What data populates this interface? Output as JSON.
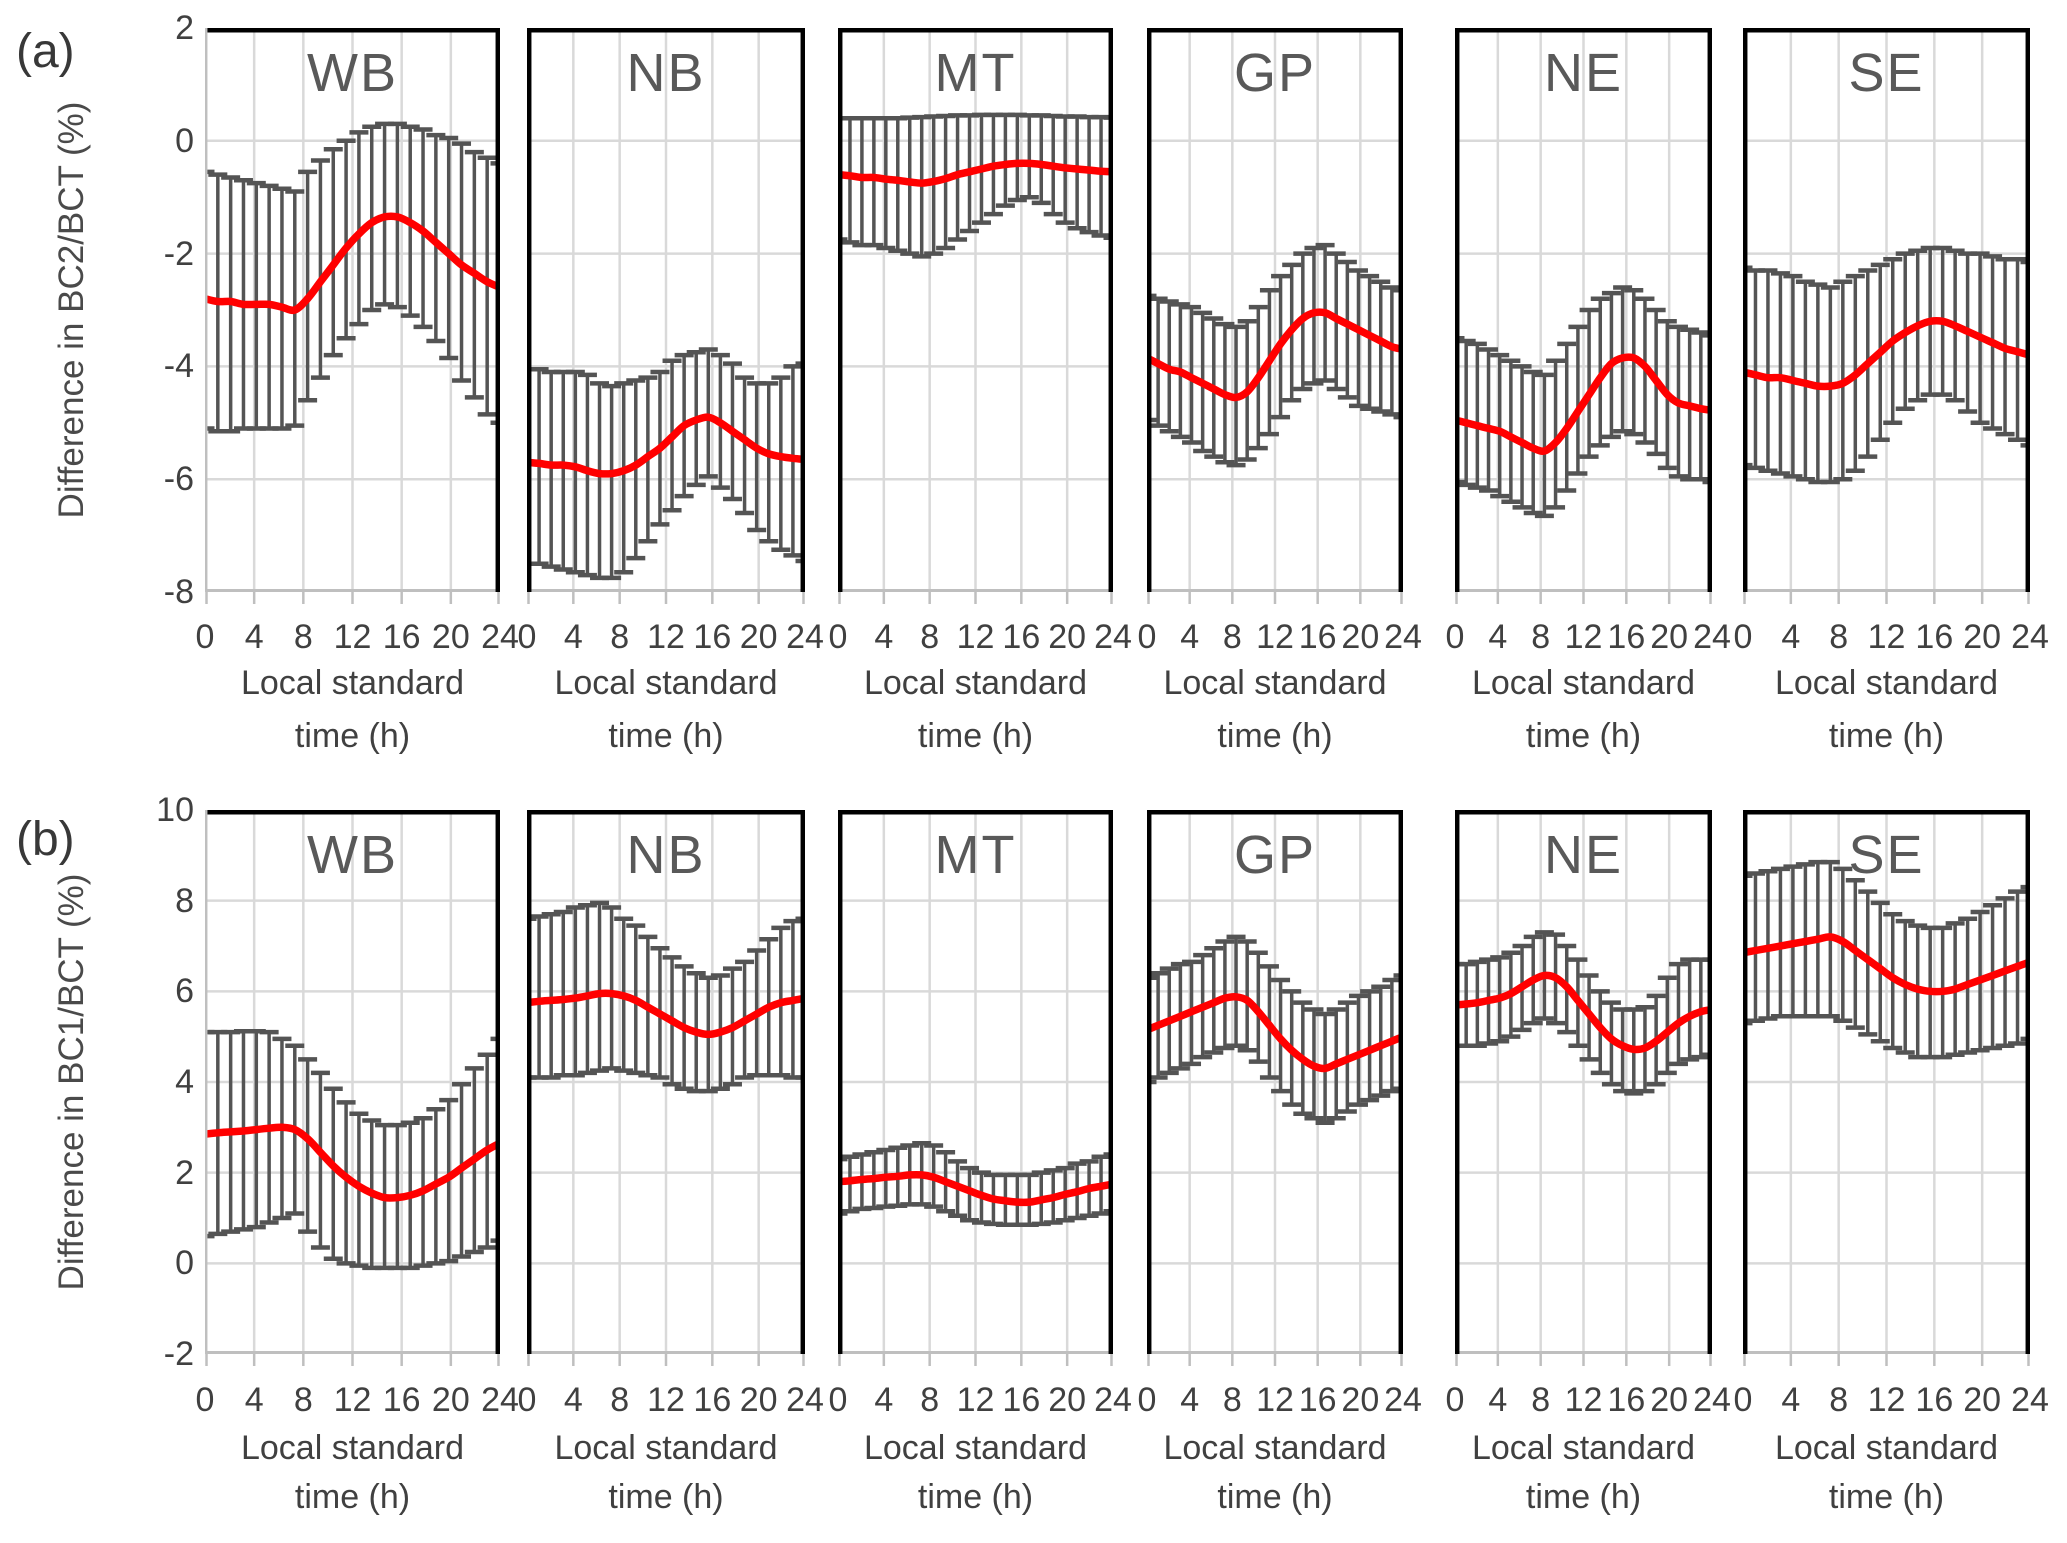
{
  "colors": {
    "mean_line": "#FF0000",
    "error_bar": "#545454",
    "gridline": "#D9D9D9",
    "axis_line": "#BFBFBF",
    "border": "#000000",
    "tick_text": "#404040",
    "title_text": "#595959"
  },
  "chart_data": [
    {
      "type": "line",
      "row_tag": "(a)",
      "ylabel": "Difference in BC2/BCT (%)",
      "ylim": [
        -8,
        2
      ],
      "yticks": [
        2,
        0,
        -2,
        -4,
        -6,
        -8
      ],
      "xticks": [
        0,
        4,
        8,
        12,
        16,
        20,
        24
      ],
      "xlabel_lines": [
        "Local standard",
        "time (h)"
      ],
      "grid": true,
      "legend": "none",
      "x_hours": [
        0,
        1,
        2,
        3,
        4,
        5,
        6,
        7,
        8,
        9,
        10,
        11,
        12,
        13,
        14,
        15,
        16,
        17,
        18,
        19,
        20,
        21,
        22,
        23
      ],
      "series_note": "red mean line with gray error bars (upper/lower whisker caps)",
      "panels": [
        {
          "label": "WB",
          "mean": [
            -2.8,
            -2.85,
            -2.85,
            -2.9,
            -2.9,
            -2.9,
            -2.95,
            -3.0,
            -2.8,
            -2.5,
            -2.2,
            -1.9,
            -1.65,
            -1.45,
            -1.35,
            -1.35,
            -1.45,
            -1.6,
            -1.8,
            -2.0,
            -2.2,
            -2.35,
            -2.5,
            -2.6
          ],
          "upper": [
            -0.55,
            -0.6,
            -0.65,
            -0.7,
            -0.75,
            -0.8,
            -0.85,
            -0.9,
            -0.55,
            -0.35,
            -0.15,
            0.0,
            0.15,
            0.25,
            0.3,
            0.3,
            0.25,
            0.2,
            0.1,
            0.05,
            -0.05,
            -0.2,
            -0.3,
            -0.4
          ],
          "lower": [
            -5.1,
            -5.15,
            -5.15,
            -5.1,
            -5.1,
            -5.1,
            -5.1,
            -5.05,
            -4.6,
            -4.2,
            -3.8,
            -3.5,
            -3.25,
            -3.0,
            -2.9,
            -2.95,
            -3.1,
            -3.3,
            -3.55,
            -3.85,
            -4.25,
            -4.55,
            -4.85,
            -5.0
          ]
        },
        {
          "label": "NB",
          "mean": [
            -5.7,
            -5.72,
            -5.75,
            -5.75,
            -5.78,
            -5.85,
            -5.9,
            -5.9,
            -5.85,
            -5.75,
            -5.6,
            -5.45,
            -5.25,
            -5.05,
            -4.95,
            -4.9,
            -5.0,
            -5.15,
            -5.3,
            -5.45,
            -5.55,
            -5.6,
            -5.63,
            -5.65
          ],
          "upper": [
            -4.05,
            -4.05,
            -4.1,
            -4.1,
            -4.1,
            -4.15,
            -4.3,
            -4.35,
            -4.3,
            -4.25,
            -4.2,
            -4.1,
            -3.9,
            -3.8,
            -3.75,
            -3.7,
            -3.8,
            -3.95,
            -4.2,
            -4.3,
            -4.3,
            -4.2,
            -4.0,
            -3.95
          ],
          "lower": [
            -7.5,
            -7.5,
            -7.55,
            -7.6,
            -7.65,
            -7.7,
            -7.75,
            -7.75,
            -7.65,
            -7.4,
            -7.1,
            -6.8,
            -6.55,
            -6.3,
            -6.1,
            -5.95,
            -6.15,
            -6.35,
            -6.6,
            -6.9,
            -7.1,
            -7.25,
            -7.35,
            -7.45
          ]
        },
        {
          "label": "MT",
          "mean": [
            -0.6,
            -0.62,
            -0.65,
            -0.65,
            -0.68,
            -0.7,
            -0.73,
            -0.75,
            -0.72,
            -0.67,
            -0.6,
            -0.55,
            -0.5,
            -0.45,
            -0.42,
            -0.4,
            -0.4,
            -0.42,
            -0.45,
            -0.48,
            -0.5,
            -0.52,
            -0.54,
            -0.55
          ],
          "upper": [
            0.4,
            0.4,
            0.4,
            0.4,
            0.4,
            0.4,
            0.41,
            0.42,
            0.43,
            0.44,
            0.45,
            0.45,
            0.46,
            0.46,
            0.46,
            0.46,
            0.45,
            0.45,
            0.44,
            0.43,
            0.43,
            0.42,
            0.42,
            0.41
          ],
          "lower": [
            -1.75,
            -1.8,
            -1.85,
            -1.85,
            -1.9,
            -1.95,
            -2.0,
            -2.05,
            -2.0,
            -1.9,
            -1.75,
            -1.6,
            -1.45,
            -1.3,
            -1.15,
            -1.05,
            -1.0,
            -1.1,
            -1.3,
            -1.45,
            -1.55,
            -1.62,
            -1.68,
            -1.72
          ]
        },
        {
          "label": "GP",
          "mean": [
            -3.85,
            -3.95,
            -4.05,
            -4.1,
            -4.2,
            -4.3,
            -4.4,
            -4.5,
            -4.55,
            -4.45,
            -4.2,
            -3.9,
            -3.6,
            -3.35,
            -3.15,
            -3.05,
            -3.05,
            -3.15,
            -3.25,
            -3.35,
            -3.45,
            -3.55,
            -3.65,
            -3.7
          ],
          "upper": [
            -2.75,
            -2.8,
            -2.85,
            -2.9,
            -2.95,
            -3.05,
            -3.15,
            -3.25,
            -3.3,
            -3.2,
            -2.95,
            -2.65,
            -2.4,
            -2.2,
            -2.0,
            -1.9,
            -1.85,
            -2.0,
            -2.15,
            -2.3,
            -2.4,
            -2.5,
            -2.6,
            -2.65
          ],
          "lower": [
            -4.95,
            -5.05,
            -5.15,
            -5.25,
            -5.35,
            -5.5,
            -5.6,
            -5.7,
            -5.75,
            -5.65,
            -5.45,
            -5.2,
            -4.9,
            -4.6,
            -4.4,
            -4.3,
            -4.25,
            -4.4,
            -4.55,
            -4.7,
            -4.75,
            -4.8,
            -4.85,
            -4.9
          ]
        },
        {
          "label": "NE",
          "mean": [
            -4.95,
            -5.0,
            -5.05,
            -5.1,
            -5.15,
            -5.25,
            -5.35,
            -5.45,
            -5.5,
            -5.35,
            -5.1,
            -4.8,
            -4.5,
            -4.2,
            -3.95,
            -3.85,
            -3.85,
            -4.0,
            -4.25,
            -4.5,
            -4.65,
            -4.7,
            -4.75,
            -4.78
          ],
          "upper": [
            -3.5,
            -3.55,
            -3.6,
            -3.7,
            -3.8,
            -3.9,
            -4.0,
            -4.1,
            -4.15,
            -3.9,
            -3.6,
            -3.3,
            -3.0,
            -2.8,
            -2.7,
            -2.6,
            -2.65,
            -2.8,
            -3.0,
            -3.2,
            -3.3,
            -3.35,
            -3.4,
            -3.45
          ],
          "lower": [
            -6.05,
            -6.1,
            -6.15,
            -6.2,
            -6.3,
            -6.4,
            -6.5,
            -6.6,
            -6.65,
            -6.5,
            -6.2,
            -5.9,
            -5.6,
            -5.4,
            -5.25,
            -5.15,
            -5.2,
            -5.35,
            -5.55,
            -5.8,
            -5.95,
            -6.0,
            -6.0,
            -6.05
          ]
        },
        {
          "label": "SE",
          "mean": [
            -4.1,
            -4.15,
            -4.2,
            -4.2,
            -4.25,
            -4.3,
            -4.35,
            -4.35,
            -4.3,
            -4.15,
            -3.95,
            -3.75,
            -3.55,
            -3.4,
            -3.28,
            -3.2,
            -3.2,
            -3.28,
            -3.38,
            -3.48,
            -3.58,
            -3.68,
            -3.74,
            -3.8
          ],
          "upper": [
            -2.25,
            -2.3,
            -2.3,
            -2.35,
            -2.4,
            -2.5,
            -2.55,
            -2.6,
            -2.5,
            -2.4,
            -2.3,
            -2.2,
            -2.1,
            -2.0,
            -1.95,
            -1.9,
            -1.9,
            -1.95,
            -2.0,
            -2.0,
            -2.05,
            -2.1,
            -2.1,
            -2.15
          ],
          "lower": [
            -5.75,
            -5.8,
            -5.85,
            -5.9,
            -5.95,
            -6.0,
            -6.05,
            -6.05,
            -6.0,
            -5.85,
            -5.6,
            -5.3,
            -5.0,
            -4.75,
            -4.6,
            -4.5,
            -4.5,
            -4.6,
            -4.8,
            -5.0,
            -5.1,
            -5.2,
            -5.3,
            -5.4
          ]
        }
      ]
    },
    {
      "type": "line",
      "row_tag": "(b)",
      "ylabel": "Difference in BC1/BCT (%)",
      "ylim": [
        -2,
        10
      ],
      "yticks": [
        10,
        8,
        6,
        4,
        2,
        0,
        -2
      ],
      "xticks": [
        0,
        4,
        8,
        12,
        16,
        20,
        24
      ],
      "xlabel_lines": [
        "Local standard",
        "time (h)"
      ],
      "grid": true,
      "legend": "none",
      "x_hours": [
        0,
        1,
        2,
        3,
        4,
        5,
        6,
        7,
        8,
        9,
        10,
        11,
        12,
        13,
        14,
        15,
        16,
        17,
        18,
        19,
        20,
        21,
        22,
        23
      ],
      "series_note": "red mean line with gray error bars (upper/lower whisker caps)",
      "panels": [
        {
          "label": "WB",
          "mean": [
            2.85,
            2.88,
            2.9,
            2.92,
            2.95,
            2.98,
            3.0,
            2.95,
            2.75,
            2.45,
            2.15,
            1.9,
            1.7,
            1.55,
            1.45,
            1.45,
            1.5,
            1.6,
            1.75,
            1.9,
            2.1,
            2.3,
            2.5,
            2.65
          ],
          "upper": [
            5.1,
            5.1,
            5.1,
            5.12,
            5.12,
            5.1,
            4.95,
            4.8,
            4.5,
            4.2,
            3.85,
            3.55,
            3.3,
            3.15,
            3.05,
            3.05,
            3.1,
            3.2,
            3.4,
            3.6,
            3.95,
            4.3,
            4.6,
            4.95
          ],
          "lower": [
            0.6,
            0.65,
            0.7,
            0.75,
            0.8,
            0.9,
            1.0,
            1.1,
            0.7,
            0.35,
            0.1,
            0.0,
            -0.05,
            -0.1,
            -0.1,
            -0.1,
            -0.1,
            -0.05,
            0.0,
            0.05,
            0.15,
            0.25,
            0.35,
            0.5
          ]
        },
        {
          "label": "NB",
          "mean": [
            5.75,
            5.78,
            5.8,
            5.82,
            5.85,
            5.9,
            5.95,
            5.95,
            5.9,
            5.8,
            5.65,
            5.5,
            5.35,
            5.2,
            5.1,
            5.05,
            5.1,
            5.2,
            5.35,
            5.5,
            5.65,
            5.75,
            5.8,
            5.85
          ],
          "upper": [
            7.6,
            7.65,
            7.7,
            7.75,
            7.85,
            7.9,
            7.95,
            7.85,
            7.6,
            7.45,
            7.2,
            6.95,
            6.75,
            6.55,
            6.4,
            6.3,
            6.35,
            6.5,
            6.65,
            6.9,
            7.15,
            7.4,
            7.55,
            7.6
          ],
          "lower": [
            4.1,
            4.1,
            4.1,
            4.15,
            4.15,
            4.2,
            4.25,
            4.3,
            4.25,
            4.2,
            4.15,
            4.1,
            3.95,
            3.85,
            3.8,
            3.8,
            3.85,
            3.95,
            4.1,
            4.15,
            4.15,
            4.15,
            4.1,
            4.1
          ]
        },
        {
          "label": "MT",
          "mean": [
            1.8,
            1.82,
            1.85,
            1.87,
            1.9,
            1.92,
            1.95,
            1.95,
            1.9,
            1.8,
            1.7,
            1.6,
            1.5,
            1.42,
            1.38,
            1.35,
            1.35,
            1.4,
            1.45,
            1.52,
            1.58,
            1.65,
            1.7,
            1.75
          ],
          "upper": [
            2.3,
            2.35,
            2.4,
            2.45,
            2.5,
            2.55,
            2.6,
            2.65,
            2.6,
            2.45,
            2.25,
            2.1,
            2.0,
            1.95,
            1.95,
            1.95,
            1.95,
            2.0,
            2.05,
            2.1,
            2.2,
            2.25,
            2.35,
            2.4
          ],
          "lower": [
            1.1,
            1.15,
            1.2,
            1.22,
            1.25,
            1.27,
            1.3,
            1.3,
            1.25,
            1.15,
            1.05,
            0.95,
            0.9,
            0.87,
            0.85,
            0.85,
            0.85,
            0.87,
            0.9,
            0.95,
            1.0,
            1.05,
            1.1,
            1.15
          ]
        },
        {
          "label": "GP",
          "mean": [
            5.15,
            5.25,
            5.35,
            5.45,
            5.55,
            5.65,
            5.75,
            5.85,
            5.88,
            5.8,
            5.55,
            5.25,
            4.95,
            4.7,
            4.5,
            4.35,
            4.3,
            4.4,
            4.5,
            4.6,
            4.7,
            4.8,
            4.9,
            5.0
          ],
          "upper": [
            6.3,
            6.4,
            6.5,
            6.6,
            6.65,
            6.8,
            6.95,
            7.1,
            7.2,
            7.1,
            6.85,
            6.55,
            6.25,
            6.0,
            5.75,
            5.6,
            5.5,
            5.6,
            5.75,
            5.9,
            6.0,
            6.1,
            6.25,
            6.35
          ],
          "lower": [
            4.0,
            4.1,
            4.2,
            4.3,
            4.4,
            4.55,
            4.65,
            4.75,
            4.8,
            4.7,
            4.45,
            4.1,
            3.8,
            3.5,
            3.3,
            3.2,
            3.1,
            3.2,
            3.35,
            3.5,
            3.6,
            3.7,
            3.8,
            3.85
          ]
        },
        {
          "label": "NE",
          "mean": [
            5.7,
            5.72,
            5.75,
            5.8,
            5.85,
            5.95,
            6.1,
            6.25,
            6.35,
            6.3,
            6.1,
            5.8,
            5.5,
            5.2,
            4.95,
            4.8,
            4.72,
            4.75,
            4.9,
            5.1,
            5.3,
            5.45,
            5.55,
            5.6
          ],
          "upper": [
            6.6,
            6.6,
            6.65,
            6.7,
            6.75,
            6.85,
            7.0,
            7.2,
            7.3,
            7.25,
            7.0,
            6.7,
            6.35,
            6.0,
            5.75,
            5.6,
            5.6,
            5.65,
            5.9,
            6.3,
            6.6,
            6.7,
            6.7,
            6.7
          ],
          "lower": [
            4.8,
            4.8,
            4.8,
            4.85,
            4.9,
            5.0,
            5.15,
            5.3,
            5.4,
            5.3,
            5.1,
            4.8,
            4.5,
            4.2,
            3.95,
            3.8,
            3.75,
            3.8,
            3.95,
            4.2,
            4.4,
            4.5,
            4.55,
            4.6
          ]
        },
        {
          "label": "SE",
          "mean": [
            6.85,
            6.9,
            6.95,
            7.0,
            7.05,
            7.1,
            7.15,
            7.2,
            7.1,
            6.9,
            6.7,
            6.5,
            6.3,
            6.15,
            6.05,
            6.0,
            6.0,
            6.05,
            6.15,
            6.25,
            6.35,
            6.45,
            6.55,
            6.65
          ],
          "upper": [
            8.55,
            8.6,
            8.65,
            8.7,
            8.75,
            8.8,
            8.85,
            8.85,
            8.7,
            8.45,
            8.2,
            7.95,
            7.7,
            7.55,
            7.45,
            7.4,
            7.4,
            7.5,
            7.6,
            7.75,
            7.9,
            8.05,
            8.2,
            8.3
          ],
          "lower": [
            5.3,
            5.35,
            5.4,
            5.45,
            5.45,
            5.45,
            5.45,
            5.45,
            5.35,
            5.2,
            5.05,
            4.9,
            4.75,
            4.65,
            4.55,
            4.55,
            4.55,
            4.6,
            4.65,
            4.7,
            4.75,
            4.8,
            4.85,
            4.95
          ]
        }
      ]
    }
  ]
}
